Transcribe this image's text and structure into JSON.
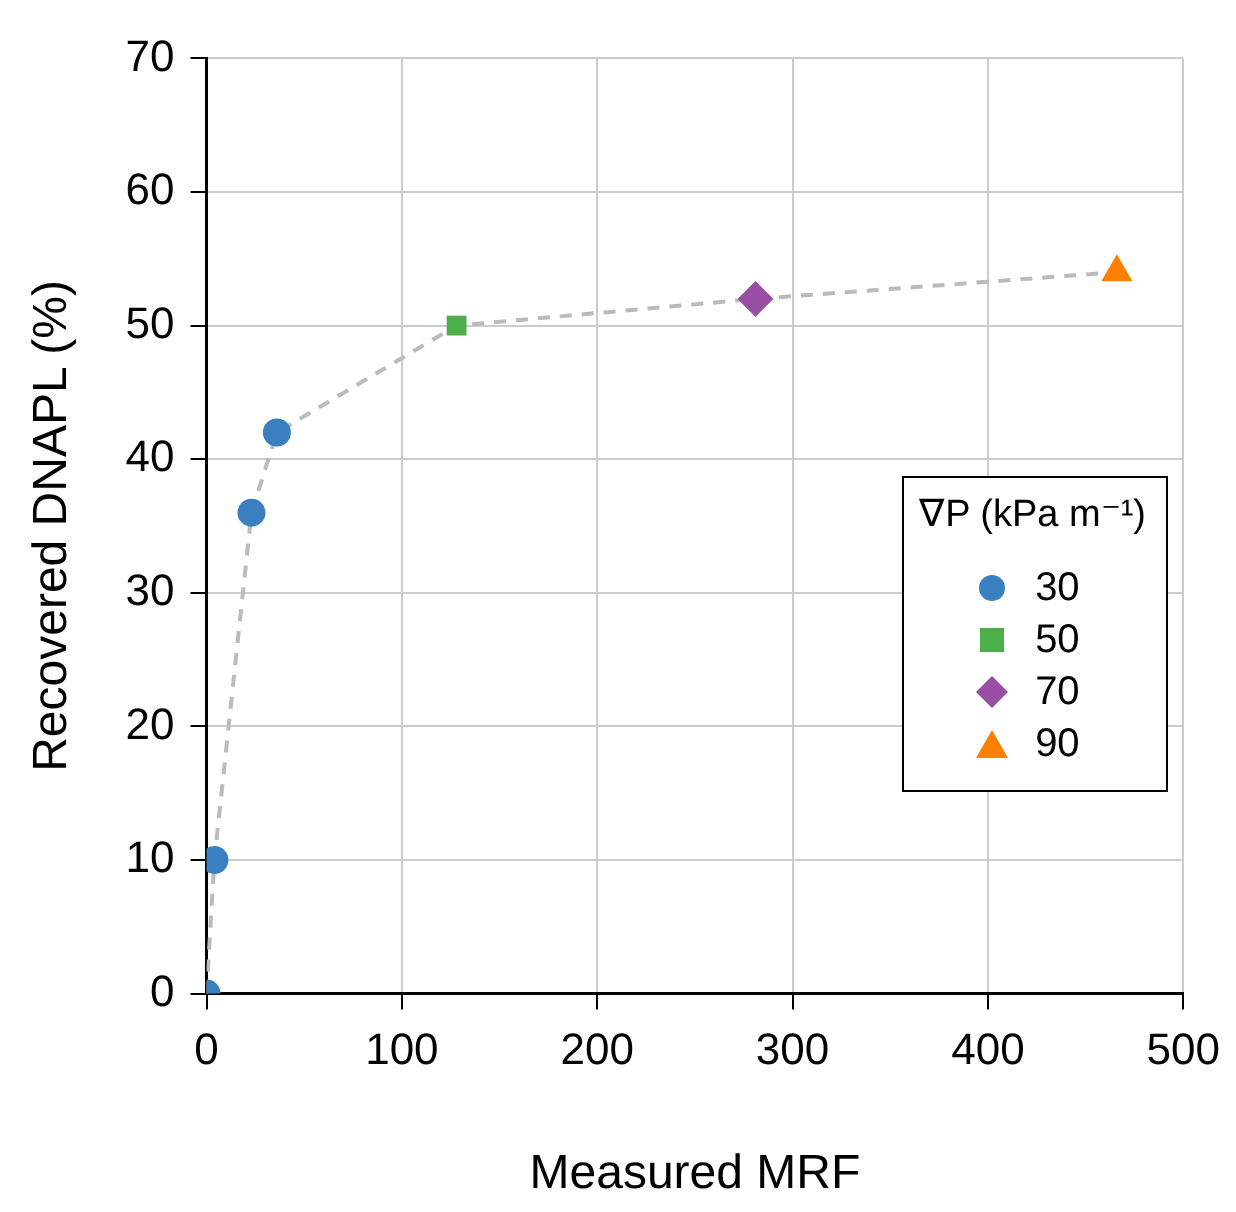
{
  "chart_data": {
    "type": "scatter",
    "xlabel": "Measured MRF",
    "ylabel": "Recovered DNAPL (%)",
    "legend_title": "∇P (kPa m⁻¹)",
    "xlim": [
      0,
      500
    ],
    "xticks": [
      0,
      100,
      200,
      300,
      400,
      500
    ],
    "ylim": [
      0,
      70
    ],
    "yticks": [
      0,
      10,
      20,
      30,
      40,
      50,
      60,
      70
    ],
    "grid": true,
    "legend": "right",
    "series": [
      {
        "type": "line",
        "color": "#bbbbbb",
        "line_style": "dashed",
        "marker": "none",
        "x": [
          0,
          4,
          23,
          36,
          128,
          281,
          466
        ],
        "values": [
          0,
          10,
          36,
          42,
          50,
          52,
          54
        ]
      },
      {
        "name": "30",
        "color": "#3a7fbf",
        "marker": "circle",
        "x": [
          0,
          4,
          23,
          36
        ],
        "values": [
          0,
          10,
          36,
          42
        ]
      },
      {
        "name": "50",
        "color": "#4daf4a",
        "marker": "square",
        "x": [
          128
        ],
        "values": [
          50
        ]
      },
      {
        "name": "70",
        "color": "#984ea3",
        "marker": "diamond",
        "x": [
          281
        ],
        "values": [
          52
        ]
      },
      {
        "name": "90",
        "color": "#ff7f00",
        "marker": "triangle",
        "x": [
          466
        ],
        "values": [
          54
        ]
      }
    ]
  }
}
